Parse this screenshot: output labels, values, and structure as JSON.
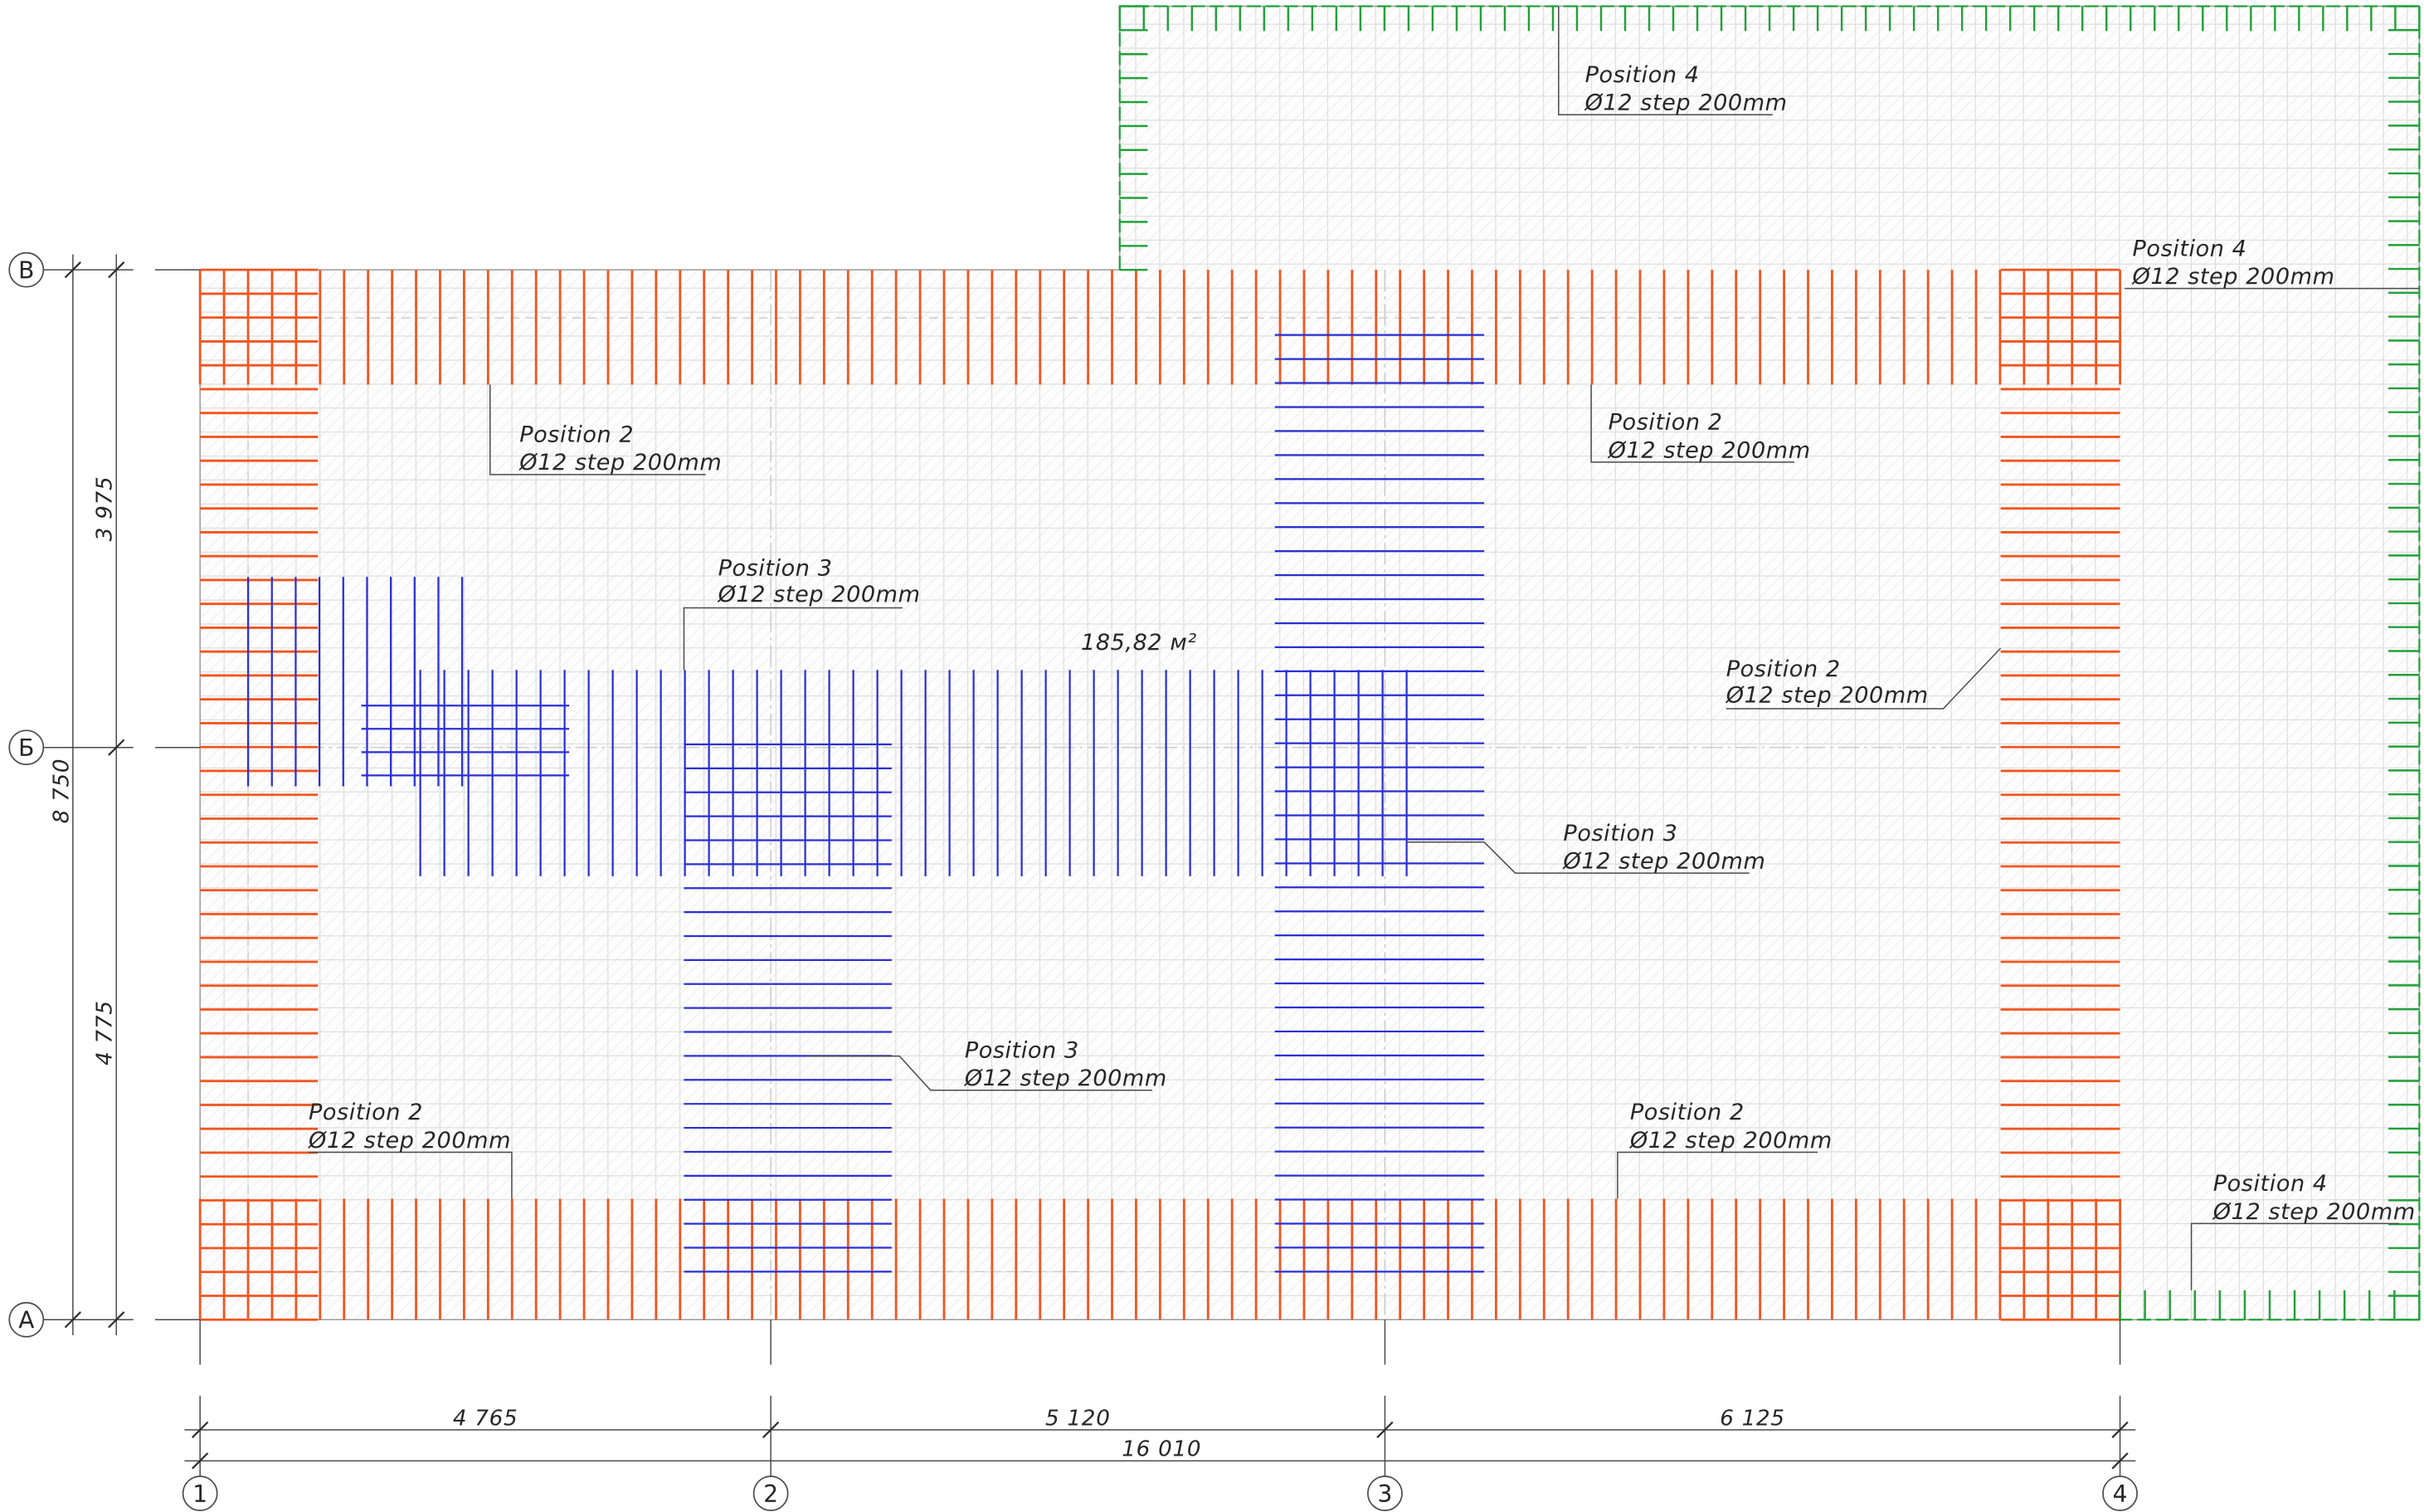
{
  "drawing": {
    "area_label": "185,82 м²"
  },
  "grid_axes": {
    "rows": [
      "В",
      "Б",
      "А"
    ],
    "columns": [
      "1",
      "2",
      "3",
      "4"
    ]
  },
  "dimensions": {
    "bottom_spans": [
      "4 765",
      "5 120",
      "6 125"
    ],
    "bottom_total": "16 010",
    "left_spans": [
      "3 975",
      "4 775"
    ],
    "left_total": "8 750"
  },
  "callouts": [
    {
      "position": "Position 4",
      "spec": "Ø12 step 200mm"
    },
    {
      "position": "Position 4",
      "spec": "Ø12 step 200mm"
    },
    {
      "position": "Position 2",
      "spec": "Ø12 step 200mm"
    },
    {
      "position": "Position 2",
      "spec": "Ø12 step 200mm"
    },
    {
      "position": "Position 3",
      "spec": "Ø12 step 200mm"
    },
    {
      "position": "Position 2",
      "spec": "Ø12 step 200mm"
    },
    {
      "position": "Position 3",
      "spec": "Ø12 step 200mm"
    },
    {
      "position": "Position 3",
      "spec": "Ø12 step 200mm"
    },
    {
      "position": "Position 2",
      "spec": "Ø12 step 200mm"
    },
    {
      "position": "Position 2",
      "spec": "Ø12 step 200mm"
    },
    {
      "position": "Position 4",
      "spec": "Ø12 step 200mm"
    }
  ],
  "colors": {
    "position_2": "#f2551f",
    "position_3": "#2b30d4",
    "position_4": "#22a03a",
    "grid": "#dcdcdc",
    "hatch": "#ececec",
    "linework": "#4a4a4a"
  }
}
